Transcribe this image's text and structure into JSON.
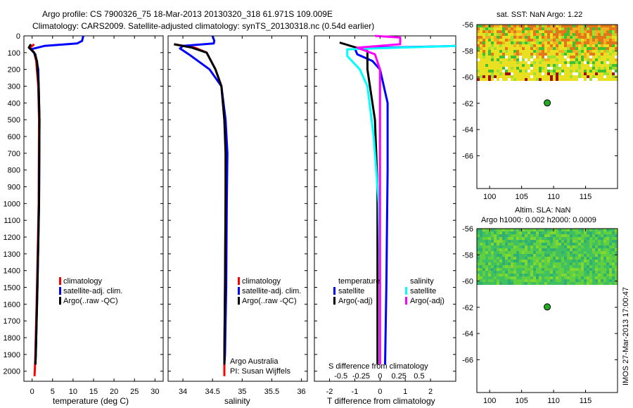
{
  "title_line1": "Argo profile: CS 7900326_75 18-Mar-2013 20130320_318 61.971S 109.009E",
  "title_line2": "Climatology: CARS2009. Satellite-adjusted climatology: synTS_20130318.nc (0.54d earlier)",
  "colors": {
    "clim": "#ff0000",
    "sat": "#0000ff",
    "argo": "#000000",
    "sat_s": "#00ffff",
    "argo_s": "#ff00ff",
    "float": "#22aa22"
  },
  "depth_ticks": [
    "0",
    "100",
    "200",
    "300",
    "400",
    "500",
    "600",
    "700",
    "800",
    "900",
    "1000",
    "1100",
    "1200",
    "1300",
    "1400",
    "1500",
    "1600",
    "1700",
    "1800",
    "1900",
    "2000"
  ],
  "chart_data": [
    {
      "type": "line",
      "name": "temperature",
      "xlabel": "temperature (deg C)",
      "ylabel": "depth",
      "xlim": [
        -2,
        32
      ],
      "ylim": [
        2060,
        0
      ],
      "xticks": [
        "0",
        "5",
        "10",
        "15",
        "20",
        "25",
        "30"
      ],
      "legend": [
        "climatology",
        "satellite-adj. clim.",
        "Argo(..raw -QC)"
      ],
      "series": [
        {
          "name": "climatology",
          "color": "red",
          "points": [
            [
              0.5,
              50
            ],
            [
              -0.5,
              70
            ],
            [
              0.5,
              100
            ],
            [
              1.0,
              150
            ],
            [
              1.5,
              300
            ],
            [
              1.7,
              500
            ],
            [
              1.6,
              1000
            ],
            [
              1.2,
              1500
            ],
            [
              0.8,
              1900
            ],
            [
              0.7,
              1970
            ],
            [
              0.6,
              2030
            ]
          ]
        },
        {
          "name": "satellite",
          "color": "blue",
          "points": [
            [
              12.5,
              0
            ],
            [
              12.2,
              30
            ],
            [
              11.0,
              45
            ],
            [
              3.0,
              60
            ],
            [
              -0.3,
              80
            ],
            [
              0.8,
              110
            ],
            [
              1.5,
              200
            ],
            [
              1.8,
              500
            ],
            [
              1.7,
              1000
            ],
            [
              1.3,
              1500
            ],
            [
              0.9,
              1900
            ],
            [
              0.8,
              1960
            ]
          ]
        },
        {
          "name": "argo",
          "color": "black",
          "points": [
            [
              -0.3,
              50
            ],
            [
              -0.8,
              70
            ],
            [
              0.5,
              100
            ],
            [
              1.2,
              150
            ],
            [
              1.6,
              300
            ],
            [
              1.8,
              500
            ],
            [
              1.7,
              1000
            ],
            [
              1.3,
              1500
            ],
            [
              0.9,
              1900
            ],
            [
              0.8,
              1960
            ]
          ]
        }
      ]
    },
    {
      "type": "line",
      "name": "salinity",
      "xlabel": "salinity",
      "xlim": [
        33.75,
        36.1
      ],
      "ylim": [
        2060,
        0
      ],
      "xticks": [
        "34",
        "34.5",
        "35",
        "35.5",
        "36"
      ],
      "legend": [
        "climatology",
        "satellite-adj. clim.",
        "Argo(..raw -QC)"
      ],
      "series": [
        {
          "name": "climatology",
          "color": "red",
          "points": [
            [
              33.85,
              50
            ],
            [
              34.2,
              70
            ],
            [
              34.4,
              100
            ],
            [
              34.55,
              200
            ],
            [
              34.65,
              300
            ],
            [
              34.7,
              500
            ],
            [
              34.73,
              700
            ],
            [
              34.72,
              1000
            ],
            [
              34.71,
              1500
            ],
            [
              34.7,
              1900
            ],
            [
              34.7,
              2030
            ]
          ]
        },
        {
          "name": "satellite",
          "color": "blue",
          "points": [
            [
              34.5,
              0
            ],
            [
              34.53,
              30
            ],
            [
              34.52,
              45
            ],
            [
              34.0,
              60
            ],
            [
              33.95,
              75
            ],
            [
              34.1,
              110
            ],
            [
              34.45,
              200
            ],
            [
              34.65,
              300
            ],
            [
              34.72,
              500
            ],
            [
              34.75,
              700
            ],
            [
              34.74,
              1000
            ],
            [
              34.73,
              1500
            ],
            [
              34.71,
              1900
            ],
            [
              34.7,
              1960
            ]
          ]
        },
        {
          "name": "argo",
          "color": "black",
          "points": [
            [
              33.85,
              50
            ],
            [
              34.15,
              70
            ],
            [
              34.4,
              100
            ],
            [
              34.55,
              200
            ],
            [
              34.65,
              300
            ],
            [
              34.7,
              500
            ],
            [
              34.72,
              700
            ],
            [
              34.72,
              1000
            ],
            [
              34.71,
              1500
            ],
            [
              34.7,
              1900
            ],
            [
              34.7,
              1960
            ]
          ]
        }
      ],
      "annotation": [
        "Argo Australia",
        "PI: Susan Wijffels"
      ]
    },
    {
      "type": "line",
      "name": "difference",
      "xlabel": "T difference from climatology",
      "xlabel_top": "S difference from climatology",
      "xlim": [
        -2.6,
        3.0
      ],
      "ylim": [
        2060,
        0
      ],
      "xticks": [
        "-2",
        "-1",
        "0",
        "1",
        "2"
      ],
      "xticks_top": [
        "-0.5",
        "-0.25",
        "0",
        "0.25",
        "0.5"
      ],
      "legend": {
        "temperature": [
          "satellite",
          "Argo(-adj)"
        ],
        "salinity": [
          "satellite",
          "Argo(-adj)"
        ]
      },
      "series": [
        {
          "name": "T satellite",
          "color": "blue",
          "points": [
            [
              3.5,
              60
            ],
            [
              -1.0,
              75
            ],
            [
              -0.9,
              110
            ],
            [
              -0.3,
              150
            ],
            [
              0,
              200
            ],
            [
              0.3,
              400
            ],
            [
              0.3,
              800
            ],
            [
              0.25,
              1500
            ],
            [
              0.2,
              1960
            ]
          ]
        },
        {
          "name": "T argo",
          "color": "black",
          "points": [
            [
              -1.6,
              40
            ],
            [
              -0.5,
              90
            ],
            [
              -0.5,
              200
            ],
            [
              -0.2,
              500
            ],
            [
              -0.1,
              900
            ],
            [
              -0.1,
              1500
            ],
            [
              -0.1,
              1960
            ]
          ]
        },
        {
          "name": "S satellite",
          "color": "cyan",
          "points": [
            [
              3.0,
              60
            ],
            [
              -1.3,
              80
            ],
            [
              -1.3,
              120
            ],
            [
              -0.8,
              200
            ],
            [
              -0.5,
              300
            ],
            [
              -0.25,
              600
            ],
            [
              -0.05,
              1000
            ],
            [
              0,
              1500
            ],
            [
              0,
              1960
            ]
          ]
        },
        {
          "name": "S argo",
          "color": "magenta",
          "points": [
            [
              -0.2,
              0
            ],
            [
              0.8,
              10
            ],
            [
              0.8,
              50
            ],
            [
              -0.9,
              70
            ],
            [
              -0.2,
              110
            ],
            [
              0,
              200
            ],
            [
              0,
              1000
            ],
            [
              0,
              1960
            ]
          ]
        }
      ]
    },
    {
      "type": "heatmap",
      "name": "sst_map",
      "title": "sat. SST: NaN Argo: 1.22",
      "xlim": [
        98,
        120
      ],
      "ylim": [
        -68.5,
        -56
      ],
      "xticks": [
        "100",
        "105",
        "110",
        "115"
      ],
      "yticks": [
        "-56",
        "-58",
        "-60",
        "-62",
        "-64",
        "-66"
      ],
      "float": [
        109.009,
        -61.971
      ]
    },
    {
      "type": "heatmap",
      "name": "sla_map",
      "title_line1": "Altim. SLA: NaN",
      "title_line2": "Argo h1000: 0.002 h2000: 0.0009",
      "xlim": [
        98,
        120
      ],
      "ylim": [
        -68.5,
        -56
      ],
      "xticks": [
        "100",
        "105",
        "110",
        "115"
      ],
      "yticks": [
        "-56",
        "-58",
        "-60",
        "-62",
        "-64",
        "-66"
      ],
      "float": [
        109.009,
        -61.971
      ]
    }
  ],
  "side_stamp": "IMOS 27-Mar-2013 17:00:47"
}
